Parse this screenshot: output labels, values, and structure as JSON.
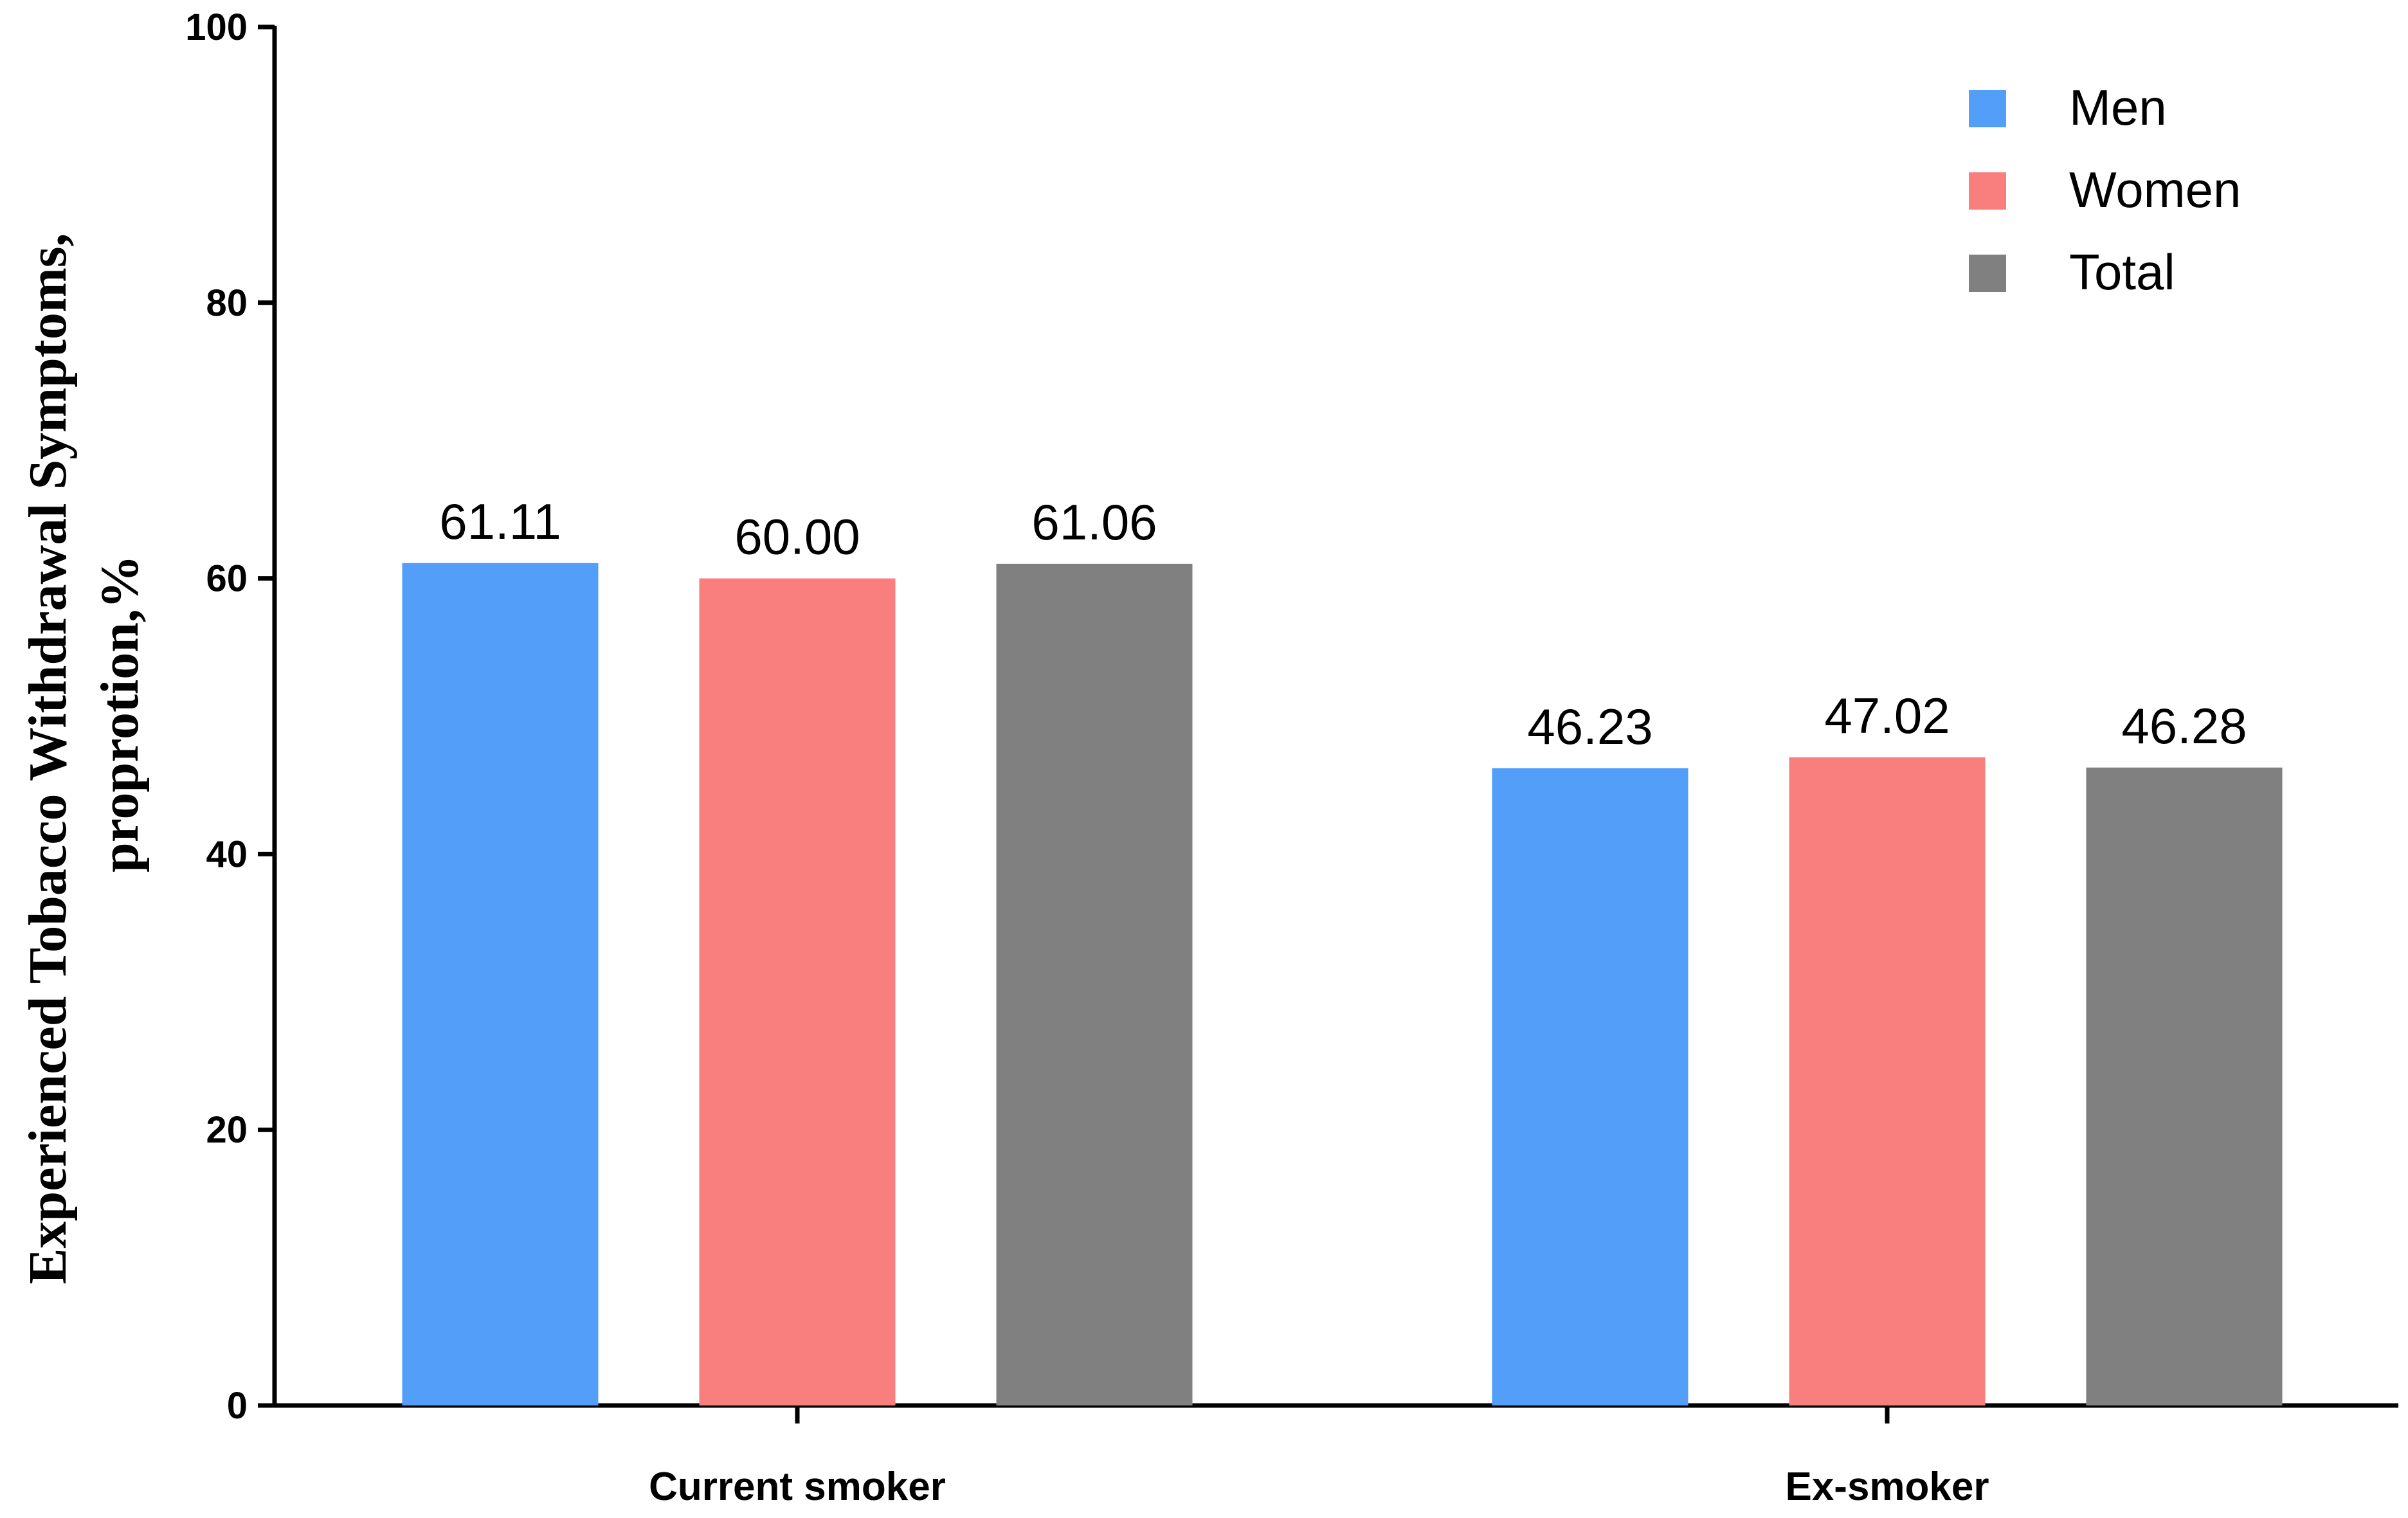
{
  "chart_data": {
    "type": "bar",
    "categories": [
      "Current smoker",
      "Ex-smoker"
    ],
    "series": [
      {
        "name": "Men",
        "color": "#529ef8",
        "values": [
          61.11,
          46.23
        ],
        "labels": [
          "61.11",
          "46.23"
        ]
      },
      {
        "name": "Women",
        "color": "#f97f7f",
        "values": [
          60.0,
          47.02
        ],
        "labels": [
          "60.00",
          "47.02"
        ]
      },
      {
        "name": "Total",
        "color": "#808080",
        "values": [
          61.06,
          46.28
        ],
        "labels": [
          "61.06",
          "46.28"
        ]
      }
    ],
    "ylabel_line1": "Experienced Tobacco Withdrawal Symptoms,",
    "ylabel_line2": "proprotion,%",
    "xlabel": "",
    "ylim": [
      0,
      100
    ],
    "yticks": [
      0,
      20,
      40,
      60,
      80,
      100
    ],
    "legend_position": "top-right",
    "grid": false
  }
}
